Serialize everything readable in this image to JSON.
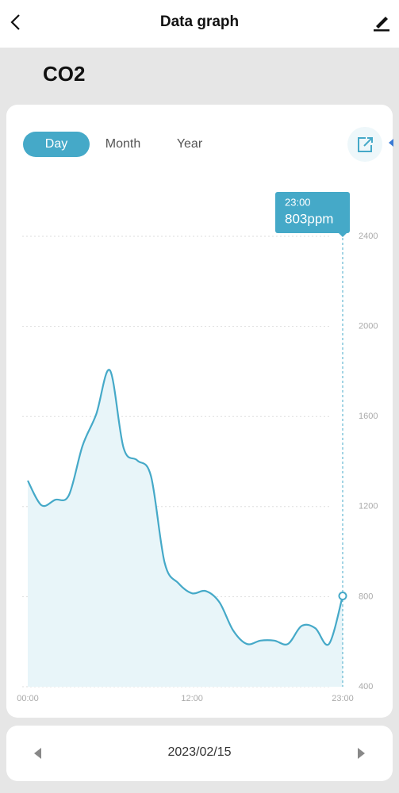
{
  "header": {
    "title": "Data graph"
  },
  "sensor": "CO2",
  "tabs": [
    "Day",
    "Month",
    "Year"
  ],
  "date": "2023/02/15",
  "chart_data": {
    "type": "line",
    "area": true,
    "color": "#45a9c8",
    "area_color": "#e8f5f9",
    "grid": true,
    "categories": [
      "00:00",
      null,
      null,
      null,
      null,
      null,
      null,
      null,
      null,
      null,
      null,
      null,
      "12:00",
      null,
      null,
      null,
      null,
      null,
      null,
      null,
      null,
      null,
      null,
      "23:00"
    ],
    "values": [
      1315,
      1206,
      1230,
      1250,
      1470,
      1610,
      1805,
      1460,
      1405,
      1335,
      950,
      860,
      815,
      825,
      775,
      650,
      590,
      605,
      605,
      590,
      670,
      660,
      590,
      803
    ],
    "value_labels": [
      null,
      null,
      null,
      null,
      null,
      null,
      null,
      null,
      null,
      null,
      null,
      null,
      null,
      null,
      null,
      null,
      null,
      null,
      null,
      null,
      null,
      null,
      null,
      "803ppm"
    ],
    "ylim": [
      400,
      2400
    ],
    "yticks": [
      400,
      800,
      1200,
      1600,
      2000,
      2400
    ]
  }
}
